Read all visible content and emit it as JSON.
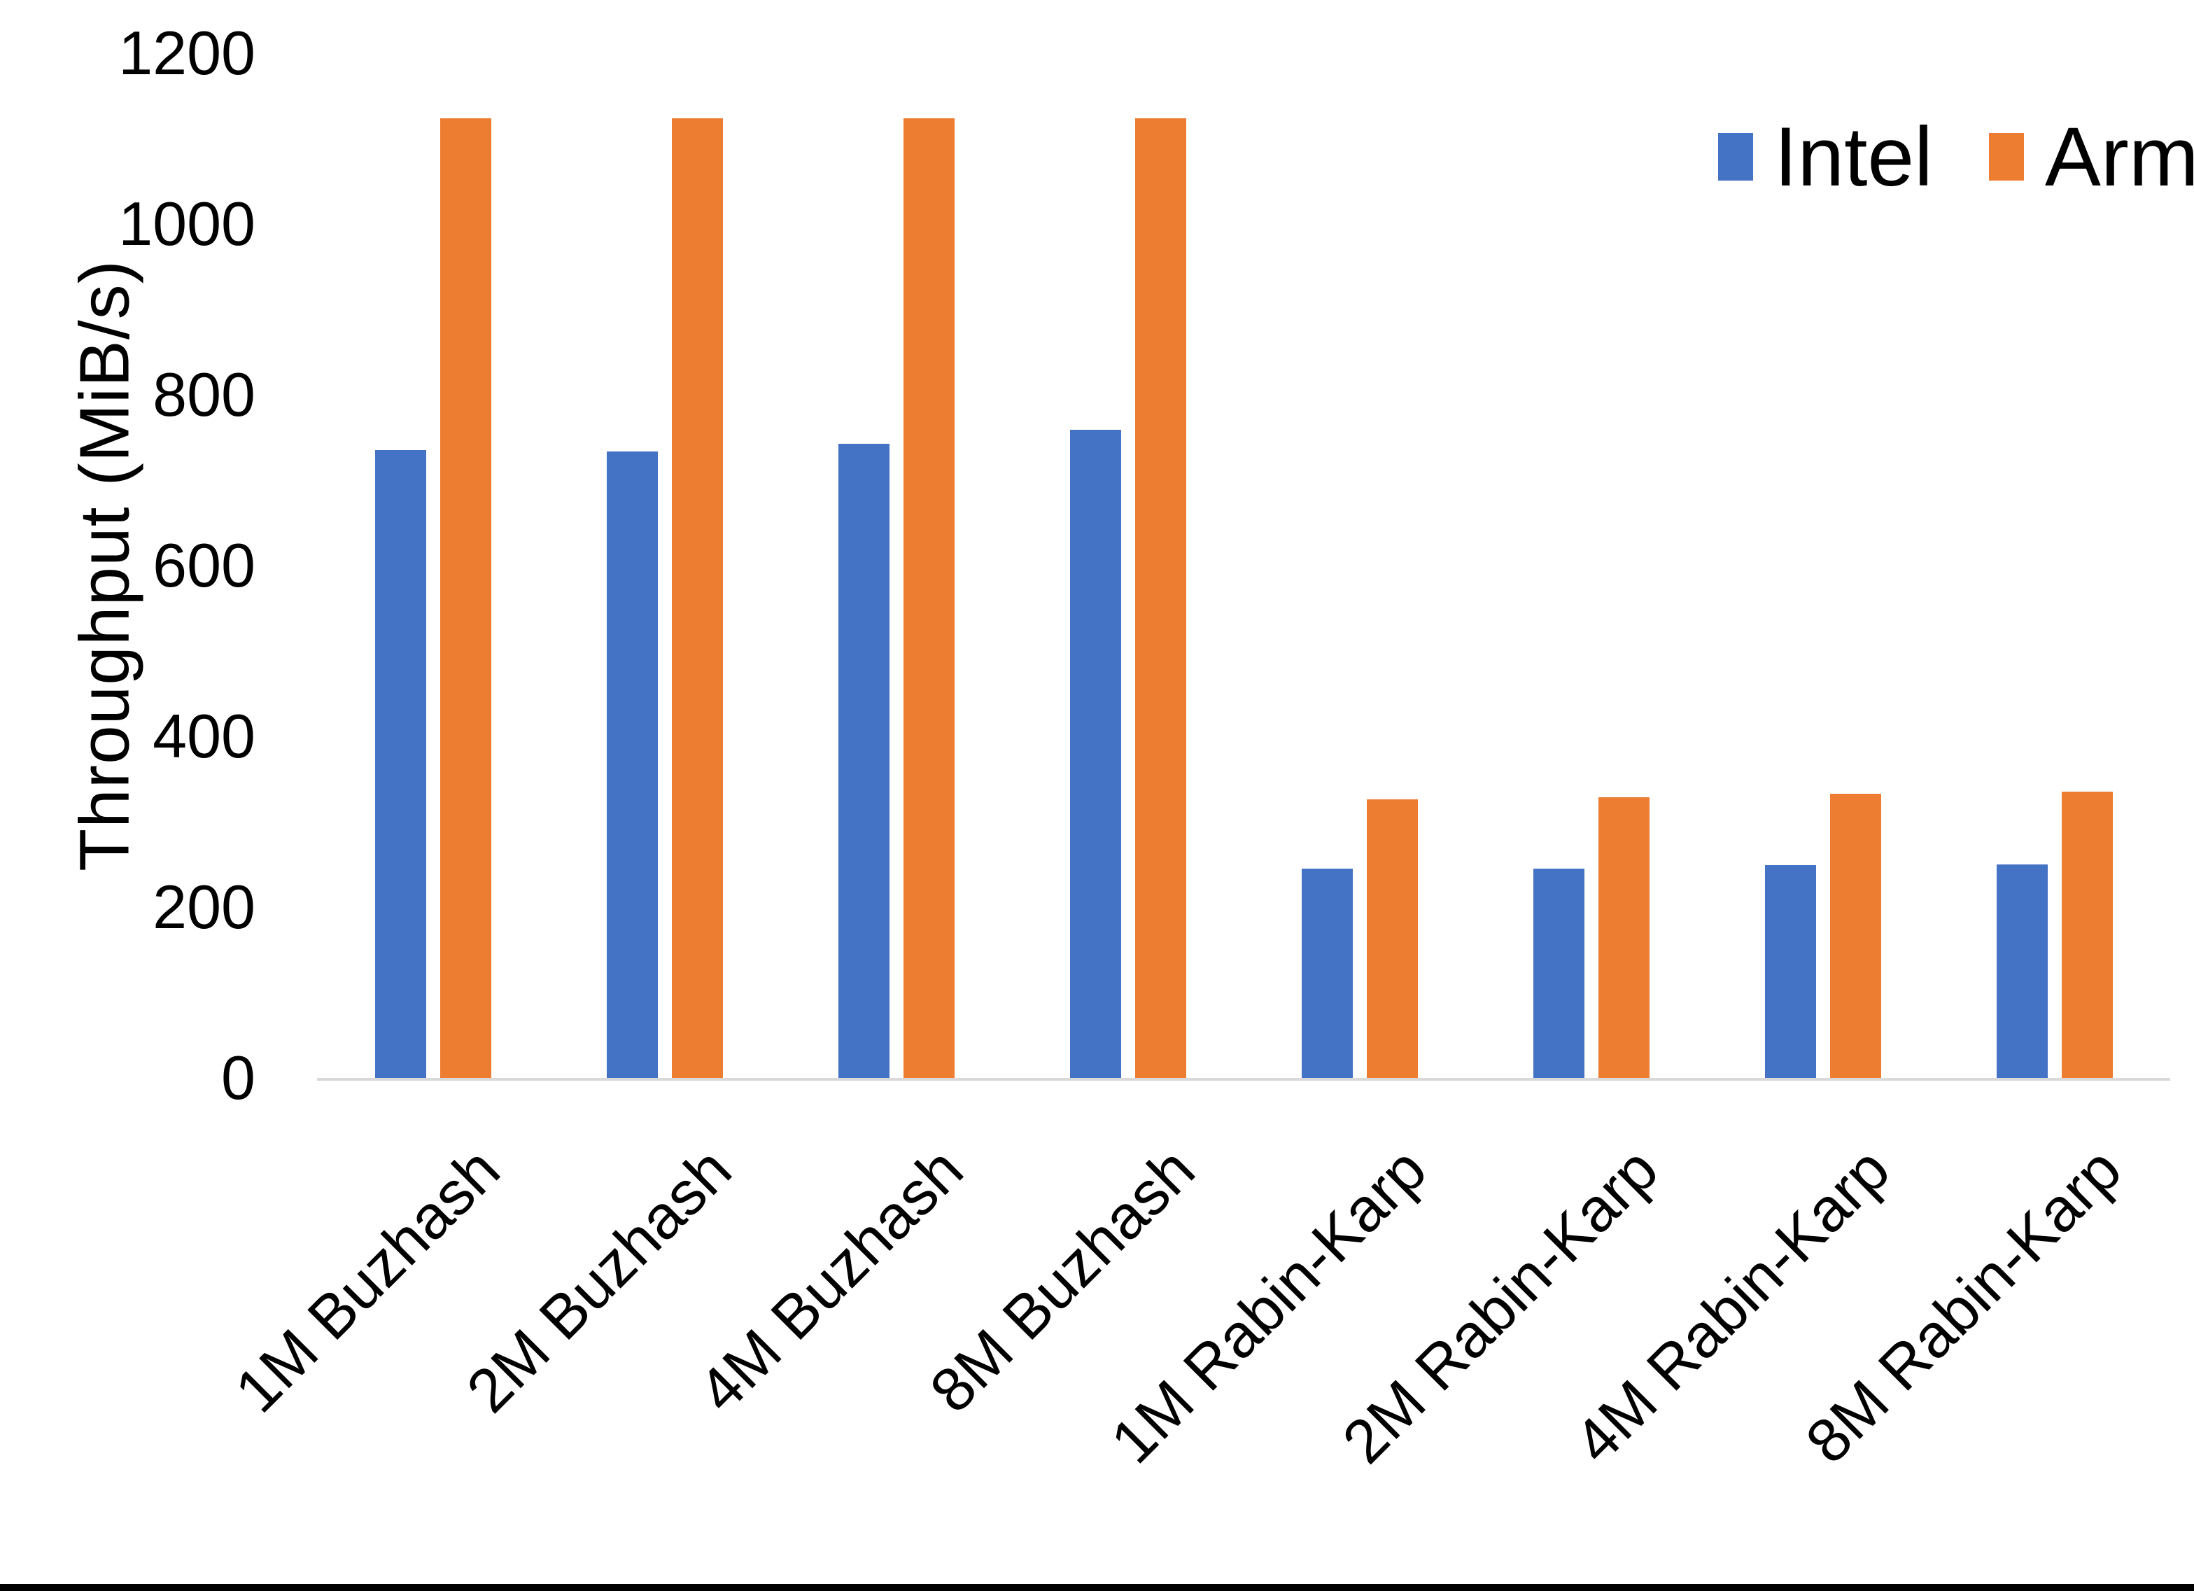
{
  "chart_data": {
    "type": "bar",
    "title": "",
    "xlabel": "",
    "ylabel": "Throughput (MiB/s)",
    "ylim": [
      0,
      1200
    ],
    "yticks": [
      0,
      200,
      400,
      600,
      800,
      1000,
      1200
    ],
    "grid": false,
    "legend_position": "top-right",
    "categories": [
      "1M Buzhash",
      "2M Buzhash",
      "4M Buzhash",
      "8M Buzhash",
      "1M Rabin-Karp",
      "2M Rabin-Karp",
      "4M Rabin-Karp",
      "8M Rabin-Karp"
    ],
    "series": [
      {
        "name": "Intel",
        "color": "#4472C4",
        "values": [
          735,
          734,
          743,
          759,
          245,
          245,
          249,
          250
        ]
      },
      {
        "name": "Arm",
        "color": "#ED7D31",
        "values": [
          1124,
          1124,
          1124,
          1124,
          326,
          329,
          333,
          335
        ]
      }
    ]
  },
  "colors": {
    "background": "#ffffff",
    "axis_line": "#d9d9d9",
    "text": "#000000",
    "bottom_border": "#000000"
  }
}
